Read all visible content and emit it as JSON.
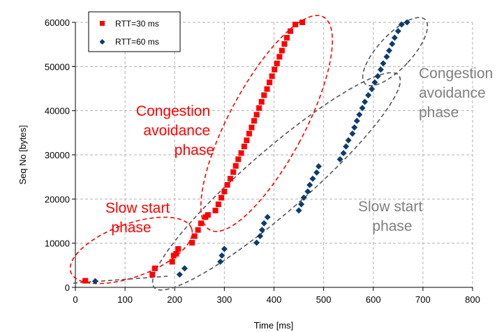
{
  "chart_data": {
    "type": "scatter",
    "xlabel": "Time [ms]",
    "ylabel": "Seq No [bytes]",
    "xlim": [
      0,
      800
    ],
    "ylim": [
      0,
      60000
    ],
    "x_ticks": [
      0,
      100,
      200,
      300,
      400,
      500,
      600,
      700,
      800
    ],
    "y_ticks": [
      0,
      10000,
      20000,
      30000,
      40000,
      50000,
      60000
    ],
    "grid": "dashed",
    "legend_position": "top-left",
    "colors": {
      "series_30": "#ff0000",
      "series_60": "#0d3b6e",
      "anno_red": "#ff0000",
      "anno_gray": "#7f7f7f"
    },
    "series": [
      {
        "name": "RTT=30 ms",
        "marker": "square",
        "points": [
          [
            20,
            1500
          ],
          [
            155,
            2900
          ],
          [
            160,
            4300
          ],
          [
            195,
            5800
          ],
          [
            198,
            7200
          ],
          [
            203,
            7600
          ],
          [
            207,
            8700
          ],
          [
            235,
            10100
          ],
          [
            240,
            11600
          ],
          [
            247,
            13000
          ],
          [
            253,
            14500
          ],
          [
            262,
            15900
          ],
          [
            267,
            16400
          ],
          [
            282,
            17400
          ],
          [
            288,
            18800
          ],
          [
            294,
            20300
          ],
          [
            300,
            21700
          ],
          [
            306,
            23200
          ],
          [
            312,
            24600
          ],
          [
            318,
            26100
          ],
          [
            323,
            27500
          ],
          [
            328,
            29000
          ],
          [
            334,
            30400
          ],
          [
            340,
            31900
          ],
          [
            345,
            33300
          ],
          [
            350,
            34800
          ],
          [
            355,
            36200
          ],
          [
            360,
            37700
          ],
          [
            365,
            39100
          ],
          [
            370,
            40600
          ],
          [
            375,
            42000
          ],
          [
            380,
            43500
          ],
          [
            386,
            44900
          ],
          [
            391,
            46400
          ],
          [
            396,
            47800
          ],
          [
            401,
            49300
          ],
          [
            406,
            50700
          ],
          [
            411,
            52200
          ],
          [
            416,
            53600
          ],
          [
            421,
            55100
          ],
          [
            426,
            56500
          ],
          [
            433,
            58000
          ],
          [
            443,
            59500
          ],
          [
            457,
            60000
          ]
        ]
      },
      {
        "name": "RTT=60 ms",
        "marker": "diamond",
        "points": [
          [
            40,
            1400
          ],
          [
            210,
            2900
          ],
          [
            220,
            4300
          ],
          [
            292,
            5800
          ],
          [
            295,
            7200
          ],
          [
            300,
            8700
          ],
          [
            365,
            10100
          ],
          [
            372,
            11600
          ],
          [
            376,
            13000
          ],
          [
            380,
            14500
          ],
          [
            387,
            15900
          ],
          [
            450,
            17400
          ],
          [
            455,
            18800
          ],
          [
            460,
            20300
          ],
          [
            468,
            21700
          ],
          [
            472,
            23200
          ],
          [
            478,
            24600
          ],
          [
            486,
            26000
          ],
          [
            490,
            27400
          ],
          [
            533,
            29000
          ],
          [
            540,
            30400
          ],
          [
            545,
            31900
          ],
          [
            550,
            33300
          ],
          [
            558,
            34800
          ],
          [
            562,
            36200
          ],
          [
            567,
            37700
          ],
          [
            572,
            39100
          ],
          [
            578,
            40600
          ],
          [
            583,
            42000
          ],
          [
            590,
            43500
          ],
          [
            597,
            44900
          ],
          [
            603,
            46400
          ],
          [
            609,
            47800
          ],
          [
            615,
            49300
          ],
          [
            620,
            50700
          ],
          [
            627,
            52200
          ],
          [
            632,
            53600
          ],
          [
            638,
            55100
          ],
          [
            643,
            56500
          ],
          [
            650,
            58000
          ],
          [
            657,
            59500
          ],
          [
            668,
            60000
          ]
        ]
      }
    ],
    "annotations": [
      {
        "lines": [
          "Congestion",
          "avoidance",
          "phase"
        ],
        "color": "red"
      },
      {
        "lines": [
          "Slow start",
          "phase"
        ],
        "color": "red"
      },
      {
        "lines": [
          "Congestion",
          "avoidance",
          "phase"
        ],
        "color": "gray"
      },
      {
        "lines": [
          "Slow start",
          "phase"
        ],
        "color": "gray"
      }
    ]
  }
}
